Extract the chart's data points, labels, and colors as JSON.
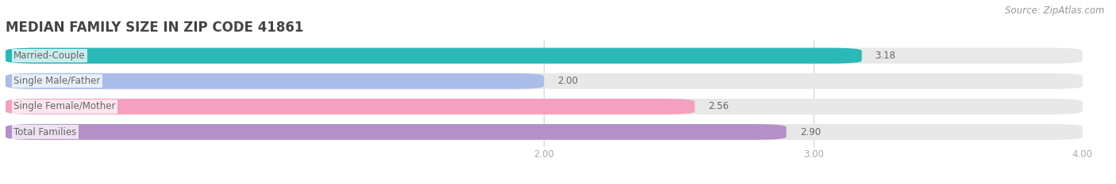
{
  "title": "MEDIAN FAMILY SIZE IN ZIP CODE 41861",
  "source": "Source: ZipAtlas.com",
  "categories": [
    "Married-Couple",
    "Single Male/Father",
    "Single Female/Mother",
    "Total Families"
  ],
  "values": [
    3.18,
    2.0,
    2.56,
    2.9
  ],
  "bar_colors": [
    "#2ab8b8",
    "#aabce8",
    "#f5a0c0",
    "#b490c8"
  ],
  "bar_bg_color": "#e8e8e8",
  "xlim": [
    0.0,
    4.0
  ],
  "xmin": 0.0,
  "xmax": 4.0,
  "xticks": [
    2.0,
    3.0,
    4.0
  ],
  "xtick_labels": [
    "2.00",
    "3.00",
    "4.00"
  ],
  "background_color": "#ffffff",
  "title_fontsize": 12,
  "label_fontsize": 8.5,
  "value_fontsize": 8.5,
  "source_fontsize": 8.5,
  "bar_height": 0.62,
  "label_color": "#666666",
  "tick_color": "#aaaaaa",
  "value_color": "#666666",
  "grid_color": "#cccccc"
}
